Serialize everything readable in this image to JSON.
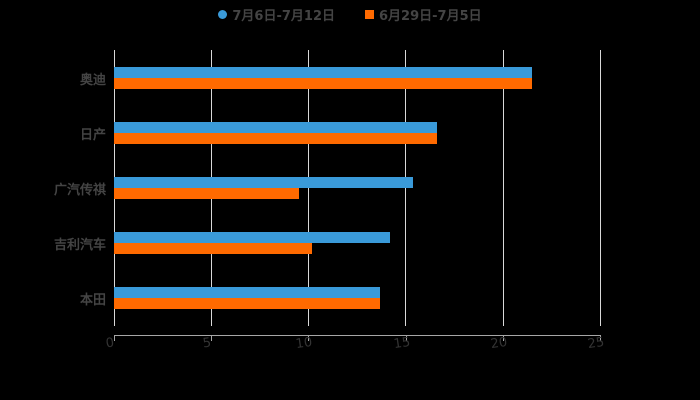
{
  "chart_data": {
    "type": "bar",
    "orientation": "horizontal",
    "title": "",
    "categories": [
      "奥迪",
      "日产",
      "广汽传祺",
      "吉利汽车",
      "本田"
    ],
    "series": [
      {
        "name": "7月6日-7月12日",
        "color": "#3a9ad9",
        "marker": "circle",
        "values": [
          21.5,
          16.6,
          15.4,
          14.2,
          13.7
        ]
      },
      {
        "name": "6月29日-7月5日",
        "color": "#ff6a00",
        "marker": "square",
        "values": [
          21.5,
          16.6,
          9.5,
          10.2,
          13.7
        ]
      }
    ],
    "xlabel": "",
    "ylabel": "",
    "xlim": [
      0,
      25
    ],
    "xticks": [
      "0",
      "5",
      "10",
      "15",
      "20",
      "25"
    ],
    "grid": "vertical",
    "legend_position": "top"
  }
}
